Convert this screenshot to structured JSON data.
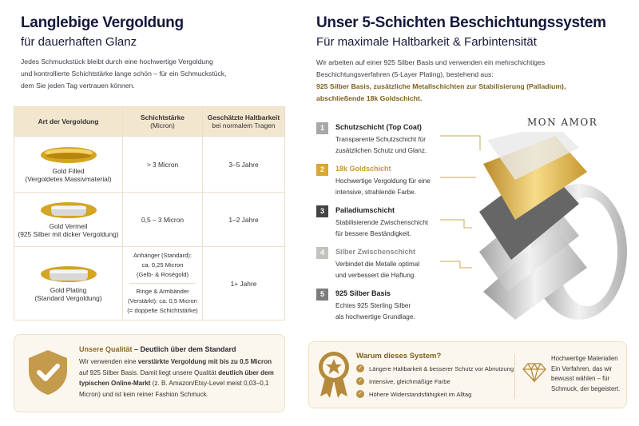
{
  "left": {
    "title": "Langlebige Vergoldung",
    "subtitle": "für dauerhaften Glanz",
    "intro": [
      "Jedes Schmuckstück bleibt durch eine hochwertige Vergoldung",
      "und kontrollierte Schichtstärke lange schön – für ein Schmuckstück,",
      "dem Sie jeden Tag vertrauen können."
    ],
    "table": {
      "headers": [
        {
          "title": "Art der Vergoldung",
          "sub": ""
        },
        {
          "title": "Schichtstärke",
          "sub": "(Micron)"
        },
        {
          "title": "Geschätzte Haltbarkeit",
          "sub": "bei normalem Tragen"
        }
      ],
      "rows": [
        {
          "name": "Gold Filled",
          "detail": "(Vergoldetes Massivmaterial)",
          "thickness": "> 3 Micron",
          "durability": "3–5 Jahre"
        },
        {
          "name": "Gold Vermeil",
          "detail": "(925 Silber mit dicker Vergoldung)",
          "thickness": "0,5 – 3 Micron",
          "durability": "1–2 Jahre"
        },
        {
          "name": "Gold Plating",
          "detail": "(Standard Vergoldung)",
          "thickness_a": [
            "Anhänger (Standard):",
            "ca. 0,25 Micron",
            "(Gelb- & Roségold)"
          ],
          "thickness_b": [
            "Ringe & Armbänder",
            "(Verstärkt): ca. 0,5 Micron",
            "(= doppelte Schichtstärke)"
          ],
          "durability": "1+ Jahre"
        }
      ]
    },
    "quality": {
      "title_accent": "Unsere Qualität",
      "title_rest": " – Deutlich über dem Standard",
      "text": [
        [
          "Wir verwenden eine ",
          false
        ],
        [
          "verstärkte Vergoldung mit bis zu 0,5 Micron",
          true
        ],
        [
          " auf 925 Silber Basis. Damit liegt unsere Qualität ",
          false
        ],
        [
          "deutlich über dem typischen Online-Markt",
          true
        ],
        [
          " (z. B. Amazon/Etsy-Level meist 0,03–0,1 Micron) und ist kein reiner Fashion Schmuck.",
          false
        ]
      ],
      "icon": "shield-check-icon"
    }
  },
  "right": {
    "title": "Unser 5-Schichten Beschichtungssystem",
    "subtitle": "Für maximale Haltbarkeit & Farbintensität",
    "intro": [
      "Wir arbeiten auf einer 925 Silber Basis und verwenden ein mehrschichtiges",
      "Beschichtungsverfahren (5-Layer Plating), bestehend aus:"
    ],
    "highlight": [
      "925 Silber Basis, zusätzliche Metallschichten zur Stabilisierung (Palladium),",
      "abschließende 18k Goldschicht."
    ],
    "logo": "MON AMOR",
    "layers": [
      {
        "num": "1",
        "title": "Schutzschicht (Top Coat)",
        "desc": [
          "Transparente Schutzschicht für",
          "zusätzlichen Schutz und Glanz."
        ],
        "color": "#a8a8a8",
        "titleColor": "#222"
      },
      {
        "num": "2",
        "title": "18k Goldschicht",
        "desc": [
          "Hochwertige Vergoldung für eine",
          "intensive, strahlende Farbe."
        ],
        "color": "#d9a638",
        "titleColor": "#c8962e"
      },
      {
        "num": "3",
        "title": "Palladiumschicht",
        "desc": [
          "Stabilisierende Zwischenschicht",
          "für bessere Beständigkeit."
        ],
        "color": "#444444",
        "titleColor": "#222"
      },
      {
        "num": "4",
        "title": "Silber Zwischenschicht",
        "desc": [
          "Verbindet die Metalle optimal",
          "und verbessert die Haftung."
        ],
        "color": "#c4c2bd",
        "titleColor": "#8a8a8a"
      },
      {
        "num": "5",
        "title": "925 Silber Basis",
        "desc": [
          "Echtes 925 Sterling Silber",
          "als hochwertige Grundlage."
        ],
        "color": "#7c7c7c",
        "titleColor": "#222"
      }
    ],
    "why": {
      "title": "Warum dieses System?",
      "items": [
        "Längere Haltbarkeit & besserer Schutz vor Abnutzung",
        "Intensive, gleichmäßige Farbe",
        "Höhere Widerstandsfähigkeit im Alltag"
      ],
      "side": [
        "Hochwertige Materialien",
        "Ein Verfahren, das wir",
        "bewusst wählen – für",
        "Schmuck, der begeistert."
      ]
    }
  },
  "colors": {
    "accent": "#b99142",
    "navy": "#15193a",
    "header_bg": "#f3e6cf",
    "box_bg": "#fcf7ee"
  }
}
